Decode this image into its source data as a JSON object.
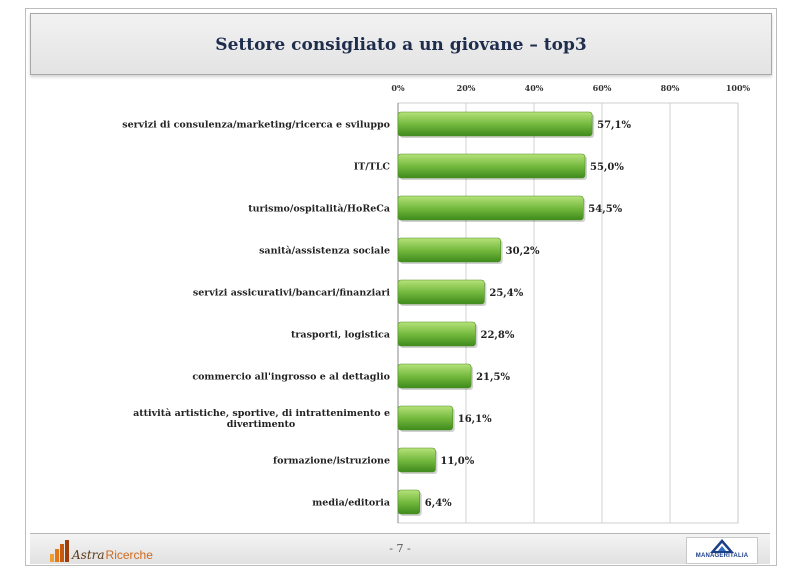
{
  "title": "Settore consigliato a un giovane – top3",
  "footer": {
    "page_number": "- 7 -",
    "logo_left_script": "Astra",
    "logo_left_name": "Ricerche",
    "logo_right_text": "MANAGERITALIA"
  },
  "colors": {
    "bar_light": "#b6e27a",
    "bar_dark": "#3f8a1e",
    "title_text": "#1f2d4d"
  },
  "chart_data": {
    "type": "bar",
    "orientation": "horizontal",
    "x_ticks": [
      "0%",
      "20%",
      "40%",
      "60%",
      "80%",
      "100%"
    ],
    "xlim": [
      0,
      100
    ],
    "grid": true,
    "categories": [
      "servizi di consulenza/marketing/ricerca e sviluppo",
      "IT/TLC",
      "turismo/ospitalità/HoReCa",
      "sanità/assistenza sociale",
      "servizi assicurativi/bancari/finanziari",
      "trasporti, logistica",
      "commercio all'ingrosso e al dettaglio",
      "attività artistiche, sportive, di intrattenimento e divertimento",
      "formazione/istruzione",
      "media/editoria"
    ],
    "category_lines": [
      [
        "servizi di consulenza/marketing/ricerca e sviluppo"
      ],
      [
        "IT/TLC"
      ],
      [
        "turismo/ospitalità/HoReCa"
      ],
      [
        "sanità/assistenza sociale"
      ],
      [
        "servizi assicurativi/bancari/finanziari"
      ],
      [
        "trasporti, logistica"
      ],
      [
        "commercio all'ingrosso e al dettaglio"
      ],
      [
        "attività artistiche, sportive, di intrattenimento e",
        "divertimento"
      ],
      [
        "formazione/istruzione"
      ],
      [
        "media/editoria"
      ]
    ],
    "values": [
      57.1,
      55.0,
      54.5,
      30.2,
      25.4,
      22.8,
      21.5,
      16.1,
      11.0,
      6.4
    ],
    "value_labels": [
      "57,1%",
      "55,0%",
      "54,5%",
      "30,2%",
      "25,4%",
      "22,8%",
      "21,5%",
      "16,1%",
      "11,0%",
      "6,4%"
    ]
  }
}
